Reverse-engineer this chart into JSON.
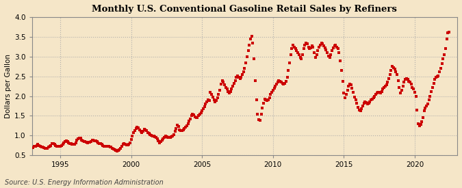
{
  "title": "Monthly U.S. Conventional Gasoline Retail Sales by Refiners",
  "ylabel": "Dollars per Gallon",
  "source": "Source: U.S. Energy Information Administration",
  "bg_color": "#f5e6c8",
  "plot_bg_color": "#f5e6c8",
  "marker_color": "#cc0000",
  "grid_color": "#aaaaaa",
  "spine_color": "#888888",
  "ylim": [
    0.5,
    4.0
  ],
  "yticks": [
    0.5,
    1.0,
    1.5,
    2.0,
    2.5,
    3.0,
    3.5,
    4.0
  ],
  "xlim": [
    1993.0,
    2023.0
  ],
  "xtick_years": [
    1995,
    2000,
    2005,
    2010,
    2015,
    2020
  ],
  "title_fontsize": 9.5,
  "tick_fontsize": 7.5,
  "ylabel_fontsize": 7.5,
  "source_fontsize": 7,
  "data": [
    [
      1993.083,
      0.69
    ],
    [
      1993.167,
      0.72
    ],
    [
      1993.25,
      0.73
    ],
    [
      1993.333,
      0.74
    ],
    [
      1993.417,
      0.77
    ],
    [
      1993.5,
      0.75
    ],
    [
      1993.583,
      0.73
    ],
    [
      1993.667,
      0.71
    ],
    [
      1993.75,
      0.7
    ],
    [
      1993.833,
      0.69
    ],
    [
      1993.917,
      0.68
    ],
    [
      1994.0,
      0.67
    ],
    [
      1994.083,
      0.68
    ],
    [
      1994.167,
      0.7
    ],
    [
      1994.25,
      0.73
    ],
    [
      1994.333,
      0.75
    ],
    [
      1994.417,
      0.79
    ],
    [
      1994.5,
      0.79
    ],
    [
      1994.583,
      0.77
    ],
    [
      1994.667,
      0.75
    ],
    [
      1994.75,
      0.73
    ],
    [
      1994.833,
      0.72
    ],
    [
      1994.917,
      0.72
    ],
    [
      1995.0,
      0.72
    ],
    [
      1995.083,
      0.74
    ],
    [
      1995.167,
      0.78
    ],
    [
      1995.25,
      0.82
    ],
    [
      1995.333,
      0.84
    ],
    [
      1995.417,
      0.87
    ],
    [
      1995.5,
      0.84
    ],
    [
      1995.583,
      0.82
    ],
    [
      1995.667,
      0.8
    ],
    [
      1995.75,
      0.79
    ],
    [
      1995.833,
      0.78
    ],
    [
      1995.917,
      0.77
    ],
    [
      1996.0,
      0.78
    ],
    [
      1996.083,
      0.81
    ],
    [
      1996.167,
      0.88
    ],
    [
      1996.25,
      0.92
    ],
    [
      1996.333,
      0.94
    ],
    [
      1996.417,
      0.93
    ],
    [
      1996.5,
      0.89
    ],
    [
      1996.583,
      0.86
    ],
    [
      1996.667,
      0.85
    ],
    [
      1996.75,
      0.84
    ],
    [
      1996.833,
      0.83
    ],
    [
      1996.917,
      0.82
    ],
    [
      1997.0,
      0.83
    ],
    [
      1997.083,
      0.83
    ],
    [
      1997.167,
      0.85
    ],
    [
      1997.25,
      0.89
    ],
    [
      1997.333,
      0.88
    ],
    [
      1997.417,
      0.87
    ],
    [
      1997.5,
      0.86
    ],
    [
      1997.583,
      0.84
    ],
    [
      1997.667,
      0.82
    ],
    [
      1997.75,
      0.8
    ],
    [
      1997.833,
      0.79
    ],
    [
      1997.917,
      0.78
    ],
    [
      1998.0,
      0.75
    ],
    [
      1998.083,
      0.73
    ],
    [
      1998.167,
      0.73
    ],
    [
      1998.25,
      0.73
    ],
    [
      1998.333,
      0.72
    ],
    [
      1998.417,
      0.72
    ],
    [
      1998.5,
      0.71
    ],
    [
      1998.583,
      0.7
    ],
    [
      1998.667,
      0.68
    ],
    [
      1998.75,
      0.66
    ],
    [
      1998.833,
      0.64
    ],
    [
      1998.917,
      0.62
    ],
    [
      1999.0,
      0.61
    ],
    [
      1999.083,
      0.62
    ],
    [
      1999.167,
      0.64
    ],
    [
      1999.25,
      0.68
    ],
    [
      1999.333,
      0.73
    ],
    [
      1999.417,
      0.77
    ],
    [
      1999.5,
      0.79
    ],
    [
      1999.583,
      0.77
    ],
    [
      1999.667,
      0.76
    ],
    [
      1999.75,
      0.76
    ],
    [
      1999.833,
      0.77
    ],
    [
      1999.917,
      0.82
    ],
    [
      2000.0,
      0.9
    ],
    [
      2000.083,
      0.98
    ],
    [
      2000.167,
      1.07
    ],
    [
      2000.25,
      1.13
    ],
    [
      2000.333,
      1.18
    ],
    [
      2000.417,
      1.22
    ],
    [
      2000.5,
      1.2
    ],
    [
      2000.583,
      1.15
    ],
    [
      2000.667,
      1.1
    ],
    [
      2000.75,
      1.07
    ],
    [
      2000.833,
      1.1
    ],
    [
      2000.917,
      1.16
    ],
    [
      2001.0,
      1.15
    ],
    [
      2001.083,
      1.12
    ],
    [
      2001.167,
      1.08
    ],
    [
      2001.25,
      1.05
    ],
    [
      2001.333,
      1.02
    ],
    [
      2001.417,
      1.0
    ],
    [
      2001.5,
      0.99
    ],
    [
      2001.583,
      0.98
    ],
    [
      2001.667,
      0.97
    ],
    [
      2001.75,
      0.95
    ],
    [
      2001.833,
      0.91
    ],
    [
      2001.917,
      0.86
    ],
    [
      2002.0,
      0.82
    ],
    [
      2002.083,
      0.84
    ],
    [
      2002.167,
      0.88
    ],
    [
      2002.25,
      0.91
    ],
    [
      2002.333,
      0.96
    ],
    [
      2002.417,
      0.99
    ],
    [
      2002.5,
      0.97
    ],
    [
      2002.583,
      0.96
    ],
    [
      2002.667,
      0.95
    ],
    [
      2002.75,
      0.96
    ],
    [
      2002.833,
      0.97
    ],
    [
      2002.917,
      0.99
    ],
    [
      2003.0,
      1.02
    ],
    [
      2003.083,
      1.1
    ],
    [
      2003.167,
      1.18
    ],
    [
      2003.25,
      1.26
    ],
    [
      2003.333,
      1.23
    ],
    [
      2003.417,
      1.15
    ],
    [
      2003.5,
      1.12
    ],
    [
      2003.583,
      1.12
    ],
    [
      2003.667,
      1.15
    ],
    [
      2003.75,
      1.18
    ],
    [
      2003.833,
      1.22
    ],
    [
      2003.917,
      1.25
    ],
    [
      2004.0,
      1.3
    ],
    [
      2004.083,
      1.36
    ],
    [
      2004.167,
      1.42
    ],
    [
      2004.25,
      1.5
    ],
    [
      2004.333,
      1.55
    ],
    [
      2004.417,
      1.52
    ],
    [
      2004.5,
      1.48
    ],
    [
      2004.583,
      1.45
    ],
    [
      2004.667,
      1.46
    ],
    [
      2004.75,
      1.5
    ],
    [
      2004.833,
      1.55
    ],
    [
      2004.917,
      1.58
    ],
    [
      2005.0,
      1.62
    ],
    [
      2005.083,
      1.68
    ],
    [
      2005.167,
      1.74
    ],
    [
      2005.25,
      1.8
    ],
    [
      2005.333,
      1.85
    ],
    [
      2005.417,
      1.9
    ],
    [
      2005.5,
      1.88
    ],
    [
      2005.583,
      2.1
    ],
    [
      2005.667,
      2.05
    ],
    [
      2005.75,
      1.98
    ],
    [
      2005.833,
      1.9
    ],
    [
      2005.917,
      1.85
    ],
    [
      2006.0,
      1.88
    ],
    [
      2006.083,
      1.95
    ],
    [
      2006.167,
      2.05
    ],
    [
      2006.25,
      2.15
    ],
    [
      2006.333,
      2.3
    ],
    [
      2006.417,
      2.4
    ],
    [
      2006.5,
      2.35
    ],
    [
      2006.583,
      2.28
    ],
    [
      2006.667,
      2.22
    ],
    [
      2006.75,
      2.18
    ],
    [
      2006.833,
      2.12
    ],
    [
      2006.917,
      2.08
    ],
    [
      2007.0,
      2.12
    ],
    [
      2007.083,
      2.18
    ],
    [
      2007.167,
      2.25
    ],
    [
      2007.25,
      2.32
    ],
    [
      2007.333,
      2.4
    ],
    [
      2007.417,
      2.48
    ],
    [
      2007.5,
      2.52
    ],
    [
      2007.583,
      2.48
    ],
    [
      2007.667,
      2.45
    ],
    [
      2007.75,
      2.48
    ],
    [
      2007.833,
      2.55
    ],
    [
      2007.917,
      2.62
    ],
    [
      2008.0,
      2.7
    ],
    [
      2008.083,
      2.85
    ],
    [
      2008.167,
      3.0
    ],
    [
      2008.25,
      3.15
    ],
    [
      2008.333,
      3.3
    ],
    [
      2008.417,
      3.45
    ],
    [
      2008.5,
      3.52
    ],
    [
      2008.583,
      3.35
    ],
    [
      2008.667,
      2.95
    ],
    [
      2008.75,
      2.4
    ],
    [
      2008.833,
      1.9
    ],
    [
      2008.917,
      1.55
    ],
    [
      2009.0,
      1.4
    ],
    [
      2009.083,
      1.38
    ],
    [
      2009.167,
      1.55
    ],
    [
      2009.25,
      1.7
    ],
    [
      2009.333,
      1.82
    ],
    [
      2009.417,
      1.92
    ],
    [
      2009.5,
      1.9
    ],
    [
      2009.583,
      1.88
    ],
    [
      2009.667,
      1.9
    ],
    [
      2009.75,
      1.95
    ],
    [
      2009.833,
      2.05
    ],
    [
      2009.917,
      2.1
    ],
    [
      2010.0,
      2.15
    ],
    [
      2010.083,
      2.2
    ],
    [
      2010.167,
      2.25
    ],
    [
      2010.25,
      2.3
    ],
    [
      2010.333,
      2.35
    ],
    [
      2010.417,
      2.4
    ],
    [
      2010.5,
      2.38
    ],
    [
      2010.583,
      2.35
    ],
    [
      2010.667,
      2.32
    ],
    [
      2010.75,
      2.3
    ],
    [
      2010.833,
      2.32
    ],
    [
      2010.917,
      2.38
    ],
    [
      2011.0,
      2.48
    ],
    [
      2011.083,
      2.65
    ],
    [
      2011.167,
      2.85
    ],
    [
      2011.25,
      3.05
    ],
    [
      2011.333,
      3.2
    ],
    [
      2011.417,
      3.3
    ],
    [
      2011.5,
      3.25
    ],
    [
      2011.583,
      3.2
    ],
    [
      2011.667,
      3.15
    ],
    [
      2011.75,
      3.1
    ],
    [
      2011.833,
      3.05
    ],
    [
      2011.917,
      2.98
    ],
    [
      2012.0,
      2.95
    ],
    [
      2012.083,
      3.05
    ],
    [
      2012.167,
      3.2
    ],
    [
      2012.25,
      3.3
    ],
    [
      2012.333,
      3.35
    ],
    [
      2012.417,
      3.32
    ],
    [
      2012.5,
      3.25
    ],
    [
      2012.583,
      3.2
    ],
    [
      2012.667,
      3.22
    ],
    [
      2012.75,
      3.28
    ],
    [
      2012.833,
      3.25
    ],
    [
      2012.917,
      3.1
    ],
    [
      2013.0,
      2.98
    ],
    [
      2013.083,
      3.05
    ],
    [
      2013.167,
      3.15
    ],
    [
      2013.25,
      3.25
    ],
    [
      2013.333,
      3.3
    ],
    [
      2013.417,
      3.35
    ],
    [
      2013.5,
      3.32
    ],
    [
      2013.583,
      3.28
    ],
    [
      2013.667,
      3.22
    ],
    [
      2013.75,
      3.18
    ],
    [
      2013.833,
      3.1
    ],
    [
      2013.917,
      3.02
    ],
    [
      2014.0,
      2.98
    ],
    [
      2014.083,
      3.05
    ],
    [
      2014.167,
      3.15
    ],
    [
      2014.25,
      3.22
    ],
    [
      2014.333,
      3.28
    ],
    [
      2014.417,
      3.3
    ],
    [
      2014.5,
      3.25
    ],
    [
      2014.583,
      3.2
    ],
    [
      2014.667,
      3.1
    ],
    [
      2014.75,
      2.9
    ],
    [
      2014.833,
      2.65
    ],
    [
      2014.917,
      2.38
    ],
    [
      2015.0,
      2.08
    ],
    [
      2015.083,
      1.95
    ],
    [
      2015.167,
      2.05
    ],
    [
      2015.25,
      2.15
    ],
    [
      2015.333,
      2.25
    ],
    [
      2015.417,
      2.3
    ],
    [
      2015.5,
      2.28
    ],
    [
      2015.583,
      2.2
    ],
    [
      2015.667,
      2.1
    ],
    [
      2015.75,
      1.98
    ],
    [
      2015.833,
      1.9
    ],
    [
      2015.917,
      1.82
    ],
    [
      2016.0,
      1.72
    ],
    [
      2016.083,
      1.65
    ],
    [
      2016.167,
      1.62
    ],
    [
      2016.25,
      1.68
    ],
    [
      2016.333,
      1.75
    ],
    [
      2016.417,
      1.82
    ],
    [
      2016.5,
      1.85
    ],
    [
      2016.583,
      1.83
    ],
    [
      2016.667,
      1.8
    ],
    [
      2016.75,
      1.82
    ],
    [
      2016.833,
      1.85
    ],
    [
      2016.917,
      1.9
    ],
    [
      2017.0,
      1.92
    ],
    [
      2017.083,
      1.95
    ],
    [
      2017.167,
      2.0
    ],
    [
      2017.25,
      2.05
    ],
    [
      2017.333,
      2.08
    ],
    [
      2017.417,
      2.1
    ],
    [
      2017.5,
      2.1
    ],
    [
      2017.583,
      2.08
    ],
    [
      2017.667,
      2.12
    ],
    [
      2017.75,
      2.18
    ],
    [
      2017.833,
      2.22
    ],
    [
      2017.917,
      2.25
    ],
    [
      2018.0,
      2.28
    ],
    [
      2018.083,
      2.35
    ],
    [
      2018.167,
      2.45
    ],
    [
      2018.25,
      2.55
    ],
    [
      2018.333,
      2.65
    ],
    [
      2018.417,
      2.75
    ],
    [
      2018.5,
      2.72
    ],
    [
      2018.583,
      2.68
    ],
    [
      2018.667,
      2.62
    ],
    [
      2018.75,
      2.55
    ],
    [
      2018.833,
      2.4
    ],
    [
      2018.917,
      2.22
    ],
    [
      2019.0,
      2.08
    ],
    [
      2019.083,
      2.15
    ],
    [
      2019.167,
      2.25
    ],
    [
      2019.25,
      2.35
    ],
    [
      2019.333,
      2.42
    ],
    [
      2019.417,
      2.45
    ],
    [
      2019.5,
      2.42
    ],
    [
      2019.583,
      2.38
    ],
    [
      2019.667,
      2.35
    ],
    [
      2019.75,
      2.3
    ],
    [
      2019.833,
      2.22
    ],
    [
      2019.917,
      2.18
    ],
    [
      2020.0,
      2.1
    ],
    [
      2020.083,
      2.0
    ],
    [
      2020.167,
      1.65
    ],
    [
      2020.25,
      1.3
    ],
    [
      2020.333,
      1.25
    ],
    [
      2020.417,
      1.28
    ],
    [
      2020.5,
      1.35
    ],
    [
      2020.583,
      1.45
    ],
    [
      2020.667,
      1.62
    ],
    [
      2020.75,
      1.7
    ],
    [
      2020.833,
      1.75
    ],
    [
      2020.917,
      1.8
    ],
    [
      2021.0,
      1.9
    ],
    [
      2021.083,
      2.0
    ],
    [
      2021.167,
      2.12
    ],
    [
      2021.25,
      2.22
    ],
    [
      2021.333,
      2.32
    ],
    [
      2021.417,
      2.42
    ],
    [
      2021.5,
      2.48
    ],
    [
      2021.583,
      2.5
    ],
    [
      2021.667,
      2.52
    ],
    [
      2021.75,
      2.62
    ],
    [
      2021.833,
      2.7
    ],
    [
      2021.917,
      2.82
    ],
    [
      2022.0,
      2.95
    ],
    [
      2022.083,
      3.05
    ],
    [
      2022.167,
      3.2
    ],
    [
      2022.25,
      3.45
    ],
    [
      2022.333,
      3.6
    ],
    [
      2022.417,
      3.62
    ]
  ]
}
